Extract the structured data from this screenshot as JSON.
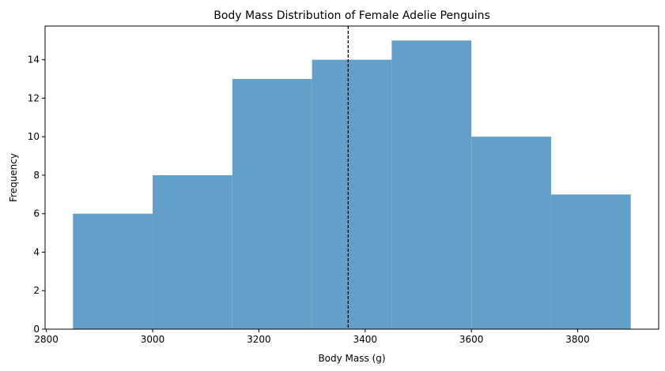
{
  "chart_data": {
    "type": "bar",
    "title": "Body Mass Distribution of Female Adelie Penguins",
    "xlabel": "Body Mass (g)",
    "ylabel": "Frequency",
    "bin_edges": [
      2850,
      3000,
      3150,
      3300,
      3450,
      3600,
      3750,
      3900
    ],
    "values": [
      6,
      8,
      13,
      14,
      15,
      10,
      7
    ],
    "xlim": [
      2797.5,
      3952.5
    ],
    "ylim": [
      0,
      15.75
    ],
    "xticks": [
      2800,
      3000,
      3200,
      3400,
      3600,
      3800
    ],
    "yticks": [
      0,
      2,
      4,
      6,
      8,
      10,
      12,
      14
    ],
    "mean_line": 3368,
    "bar_color": "#62a0ca",
    "mean_line_color": "#000000",
    "grid": false
  }
}
